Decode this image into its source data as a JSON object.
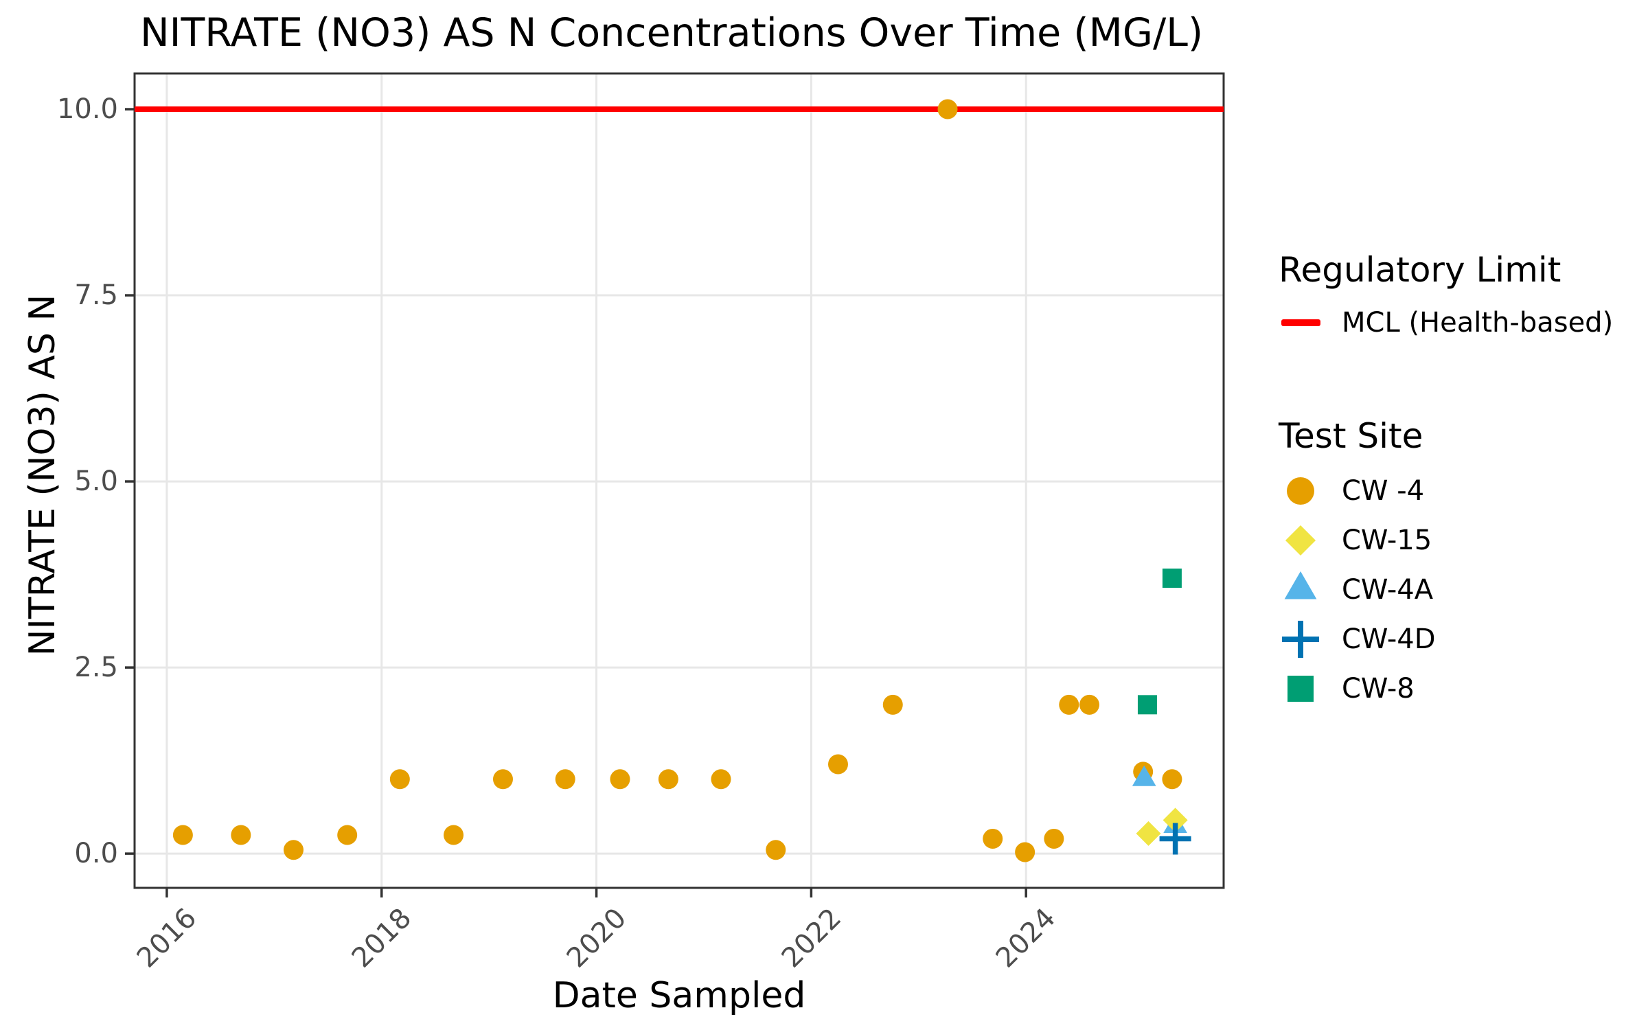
{
  "title": "NITRATE (NO3) AS N Concentrations Over Time (MG/L)",
  "x_axis": {
    "label": "Date Sampled",
    "tick_labels": [
      "2016",
      "2018",
      "2020",
      "2022",
      "2024"
    ]
  },
  "y_axis": {
    "label": "NITRATE (NO3) AS N",
    "tick_labels": [
      "0.0",
      "2.5",
      "5.0",
      "7.5",
      "10.0"
    ]
  },
  "legend": {
    "regulatory_limit": {
      "title": "Regulatory Limit",
      "items": [
        {
          "label": "MCL (Health-based)",
          "marker": "line",
          "color": "#FF0000"
        }
      ]
    },
    "test_site": {
      "title": "Test Site",
      "items": [
        {
          "label": "CW -4",
          "marker": "circle",
          "color": "#E69F00"
        },
        {
          "label": "CW-15",
          "marker": "diamond",
          "color": "#F0E442"
        },
        {
          "label": "CW-4A",
          "marker": "triangle",
          "color": "#56B4E9"
        },
        {
          "label": "CW-4D",
          "marker": "plus",
          "color": "#0072B2"
        },
        {
          "label": "CW-8",
          "marker": "square",
          "color": "#009E73"
        }
      ]
    }
  },
  "chart_data": {
    "type": "scatter",
    "title": "NITRATE (NO3) AS N Concentrations Over Time (MG/L)",
    "xlabel": "Date Sampled",
    "ylabel": "NITRATE (NO3) AS N",
    "xlim": [
      2015.7,
      2025.84
    ],
    "ylim": [
      -0.46,
      10.48
    ],
    "x_ticks": [
      2016,
      2018,
      2020,
      2022,
      2024
    ],
    "y_ticks": [
      0.0,
      2.5,
      5.0,
      7.5,
      10.0
    ],
    "grid": true,
    "legend_position": "right",
    "reference_line": {
      "y": 10.0,
      "color": "#FF0000",
      "label": "MCL (Health-based)"
    },
    "series": [
      {
        "name": "CW -4",
        "marker": "circle",
        "color": "#E69F00",
        "z": 1,
        "points": [
          [
            2016.15,
            0.25
          ],
          [
            2016.69,
            0.25
          ],
          [
            2017.18,
            0.05
          ],
          [
            2017.68,
            0.25
          ],
          [
            2018.17,
            1.0
          ],
          [
            2018.67,
            0.25
          ],
          [
            2019.13,
            1.0
          ],
          [
            2019.71,
            1.0
          ],
          [
            2020.22,
            1.0
          ],
          [
            2020.67,
            1.0
          ],
          [
            2021.16,
            1.0
          ],
          [
            2021.67,
            0.05
          ],
          [
            2022.25,
            1.2
          ],
          [
            2022.76,
            2.0
          ],
          [
            2023.27,
            10.0
          ],
          [
            2023.69,
            0.2
          ],
          [
            2023.99,
            0.02
          ],
          [
            2024.26,
            0.2
          ],
          [
            2024.4,
            2.0
          ],
          [
            2024.59,
            2.0
          ],
          [
            2025.09,
            1.1
          ],
          [
            2025.36,
            1.0
          ]
        ]
      },
      {
        "name": "CW-15",
        "marker": "diamond",
        "color": "#F0E442",
        "z": 3,
        "points": [
          [
            2025.14,
            0.27
          ],
          [
            2025.39,
            0.45
          ]
        ]
      },
      {
        "name": "CW-4A",
        "marker": "triangle",
        "color": "#56B4E9",
        "z": 2,
        "points": [
          [
            2025.1,
            1.0
          ],
          [
            2025.39,
            0.37
          ]
        ]
      },
      {
        "name": "CW-4D",
        "marker": "plus",
        "color": "#0072B2",
        "z": 4,
        "points": [
          [
            2025.39,
            0.2
          ]
        ]
      },
      {
        "name": "CW-8",
        "marker": "square",
        "color": "#009E73",
        "z": 5,
        "points": [
          [
            2025.13,
            2.0
          ],
          [
            2025.36,
            3.7
          ]
        ]
      }
    ]
  }
}
